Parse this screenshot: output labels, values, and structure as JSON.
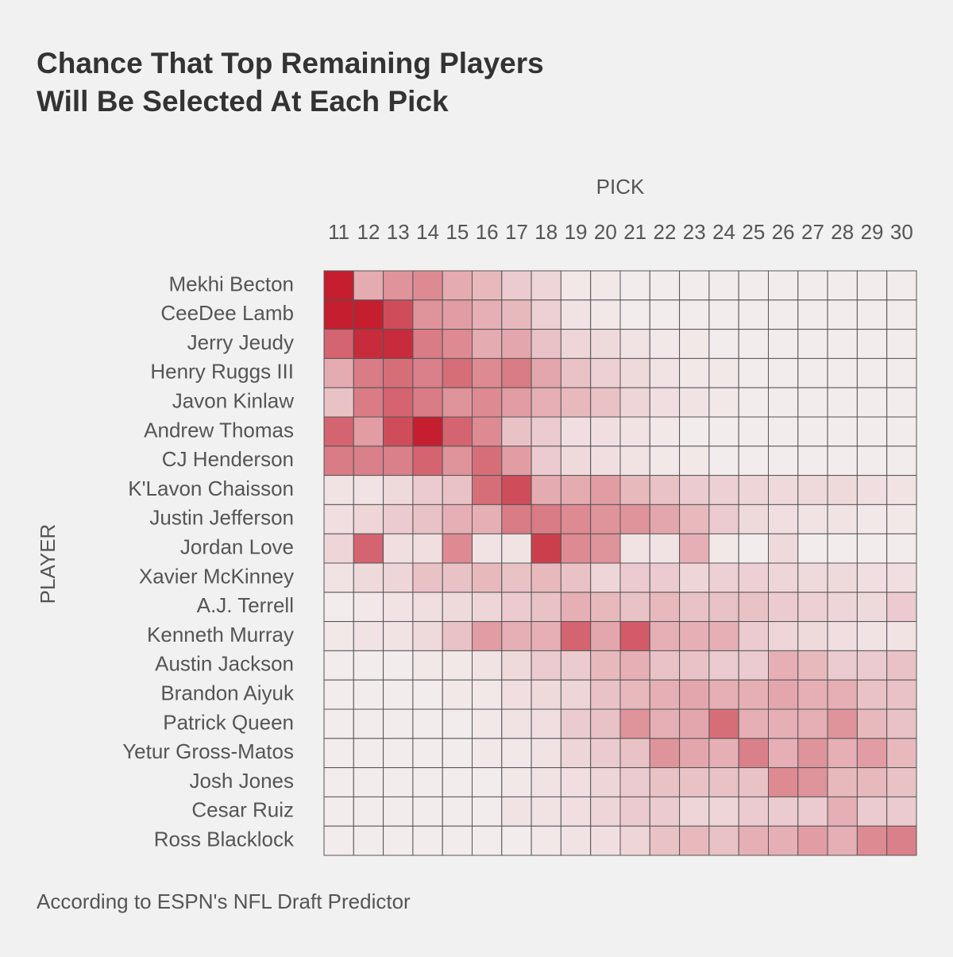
{
  "chart_data": {
    "type": "heatmap",
    "title_lines": [
      "Chance That Top Remaining Players",
      "Will Be Selected At Each Pick"
    ],
    "x_label": "PICK",
    "y_label": "PLAYER",
    "source": "According to ESPN's NFL Draft Predictor",
    "x": [
      11,
      12,
      13,
      14,
      15,
      16,
      17,
      18,
      19,
      20,
      21,
      22,
      23,
      24,
      25,
      26,
      27,
      28,
      29,
      30
    ],
    "categories": [
      "Mekhi Becton",
      "CeeDee Lamb",
      "Jerry Jeudy",
      "Henry Ruggs III",
      "Javon Kinlaw",
      "Andrew Thomas",
      "CJ Henderson",
      "K'Lavon Chaisson",
      "Justin Jefferson",
      "Jordan Love",
      "Xavier McKinney",
      "A.J. Terrell",
      "Kenneth Murray",
      "Austin Jackson",
      "Brandon Aiyuk",
      "Patrick Queen",
      "Yetur Gross-Matos",
      "Josh Jones",
      "Cesar Ruiz",
      "Ross Blacklock"
    ],
    "values": [
      [
        45,
        15,
        20,
        22,
        15,
        12,
        8,
        6,
        2,
        2,
        1,
        1,
        1,
        1,
        1,
        1,
        1,
        1,
        1,
        1
      ],
      [
        45,
        45,
        35,
        20,
        18,
        14,
        12,
        7,
        3,
        2,
        1,
        1,
        1,
        1,
        1,
        1,
        1,
        1,
        1,
        1
      ],
      [
        30,
        42,
        42,
        25,
        22,
        15,
        16,
        10,
        6,
        5,
        3,
        2,
        2,
        1,
        1,
        1,
        1,
        1,
        1,
        1
      ],
      [
        15,
        25,
        28,
        24,
        28,
        22,
        25,
        16,
        10,
        7,
        5,
        3,
        2,
        2,
        1,
        1,
        1,
        1,
        1,
        1
      ],
      [
        10,
        25,
        30,
        25,
        20,
        22,
        18,
        14,
        12,
        10,
        6,
        4,
        3,
        2,
        1,
        1,
        1,
        1,
        1,
        1
      ],
      [
        30,
        18,
        35,
        45,
        30,
        22,
        10,
        8,
        4,
        4,
        3,
        2,
        1,
        1,
        1,
        1,
        1,
        1,
        1,
        1
      ],
      [
        25,
        24,
        24,
        30,
        20,
        28,
        18,
        8,
        5,
        4,
        3,
        2,
        2,
        1,
        1,
        1,
        1,
        1,
        1,
        1
      ],
      [
        3,
        3,
        5,
        8,
        10,
        28,
        35,
        15,
        15,
        18,
        12,
        10,
        8,
        7,
        6,
        5,
        5,
        5,
        4,
        3
      ],
      [
        4,
        6,
        8,
        10,
        14,
        14,
        25,
        25,
        22,
        20,
        20,
        16,
        12,
        8,
        5,
        4,
        3,
        3,
        2,
        2
      ],
      [
        6,
        30,
        4,
        4,
        22,
        3,
        3,
        38,
        22,
        20,
        3,
        3,
        14,
        2,
        1,
        5,
        1,
        1,
        1,
        1
      ],
      [
        3,
        5,
        6,
        10,
        10,
        12,
        10,
        12,
        10,
        6,
        8,
        8,
        6,
        7,
        7,
        6,
        5,
        5,
        4,
        4
      ],
      [
        1,
        2,
        3,
        4,
        5,
        6,
        8,
        10,
        14,
        12,
        10,
        12,
        10,
        10,
        10,
        8,
        7,
        6,
        5,
        8
      ],
      [
        2,
        3,
        3,
        5,
        10,
        18,
        14,
        14,
        30,
        16,
        32,
        14,
        14,
        14,
        8,
        6,
        5,
        4,
        3,
        3
      ],
      [
        1,
        1,
        1,
        2,
        2,
        3,
        5,
        8,
        8,
        12,
        14,
        10,
        10,
        8,
        8,
        14,
        12,
        8,
        8,
        10
      ],
      [
        1,
        1,
        1,
        1,
        2,
        2,
        4,
        5,
        6,
        10,
        12,
        14,
        16,
        14,
        14,
        16,
        14,
        14,
        10,
        10
      ],
      [
        1,
        1,
        1,
        1,
        1,
        2,
        3,
        4,
        8,
        10,
        20,
        14,
        16,
        28,
        14,
        14,
        14,
        20,
        12,
        10
      ],
      [
        1,
        1,
        1,
        1,
        1,
        2,
        2,
        3,
        6,
        8,
        10,
        20,
        16,
        14,
        24,
        14,
        20,
        14,
        18,
        12
      ],
      [
        1,
        1,
        1,
        1,
        1,
        1,
        2,
        3,
        4,
        6,
        8,
        10,
        10,
        10,
        10,
        22,
        20,
        12,
        12,
        10
      ],
      [
        1,
        1,
        1,
        1,
        1,
        1,
        3,
        3,
        4,
        6,
        8,
        8,
        6,
        6,
        8,
        8,
        8,
        14,
        8,
        8
      ],
      [
        1,
        1,
        1,
        1,
        1,
        1,
        1,
        2,
        3,
        4,
        6,
        10,
        12,
        10,
        14,
        14,
        18,
        14,
        22,
        24
      ]
    ],
    "color_low": "#f4f1f1",
    "color_high": "#c41e2f"
  }
}
